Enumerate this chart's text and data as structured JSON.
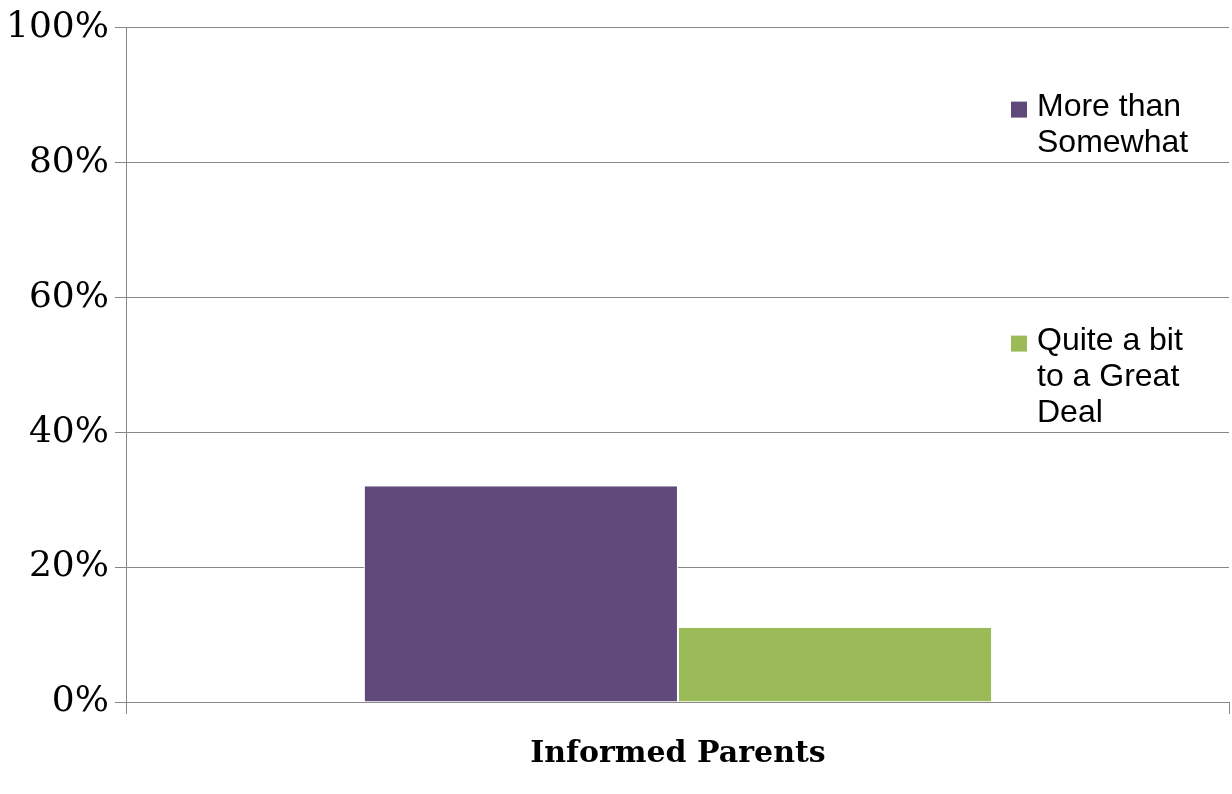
{
  "chart_data": {
    "type": "bar",
    "categories": [
      "Informed Parents"
    ],
    "series": [
      {
        "name": "More than Somewhat",
        "color": "#604a7b",
        "values": [
          32
        ]
      },
      {
        "name": "Quite a bit to a Great Deal",
        "color": "#9bbb59",
        "values": [
          11
        ]
      }
    ],
    "ylim": [
      0,
      100
    ],
    "yticks": [
      {
        "value": 0,
        "label": "0%"
      },
      {
        "value": 20,
        "label": "20%"
      },
      {
        "value": 40,
        "label": "40%"
      },
      {
        "value": 60,
        "label": "60%"
      },
      {
        "value": 80,
        "label": "80%"
      },
      {
        "value": 100,
        "label": "100%"
      }
    ],
    "grid": "y",
    "legend": "top right"
  }
}
